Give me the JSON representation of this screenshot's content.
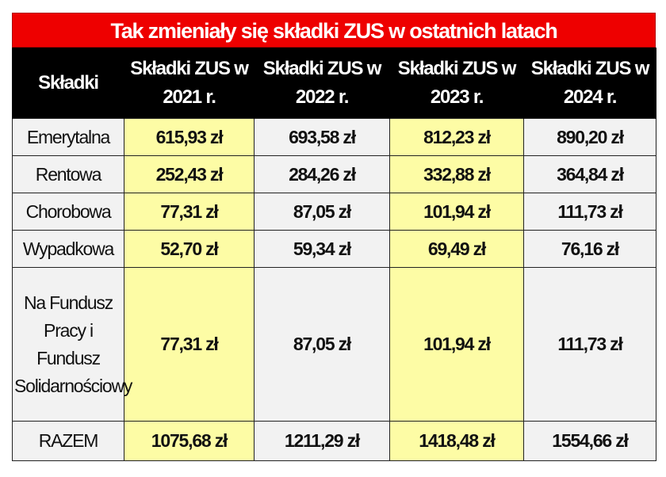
{
  "title": "Tak zmieniały się składki ZUS w ostatnich latach",
  "colors": {
    "title_bg": "#ee0000",
    "header_bg": "#000000",
    "highlight": "#fdfca5",
    "plain": "#f2f2f2"
  },
  "headers": [
    "Składki",
    "Składki ZUS w 2021 r.",
    "Składki ZUS w 2022 r.",
    "Składki ZUS w 2023 r.",
    "Składki ZUS w 2024 r."
  ],
  "rows": [
    {
      "label": "Emerytalna",
      "values": [
        "615,93 zł",
        "693,58 zł",
        "812,23 zł",
        "890,20 zł"
      ]
    },
    {
      "label": "Rentowa",
      "values": [
        "252,43 zł",
        "284,26 zł",
        "332,88 zł",
        "364,84 zł"
      ]
    },
    {
      "label": "Chorobowa",
      "values": [
        "77,31 zł",
        "87,05 zł",
        "101,94 zł",
        "111,73 zł"
      ]
    },
    {
      "label": "Wypadkowa",
      "values": [
        "52,70 zł",
        "59,34 zł",
        "69,49 zł",
        "76,16 zł"
      ]
    },
    {
      "label": "Na Fundusz Pracy i Fundusz Solidarnościowy",
      "values": [
        "77,31 zł",
        "87,05 zł",
        "101,94 zł",
        "111,73 zł"
      ]
    },
    {
      "label": "RAZEM",
      "values": [
        "1075,68 zł",
        "1211,29 zł",
        "1418,48 zł",
        "1554,66 zł"
      ]
    }
  ]
}
